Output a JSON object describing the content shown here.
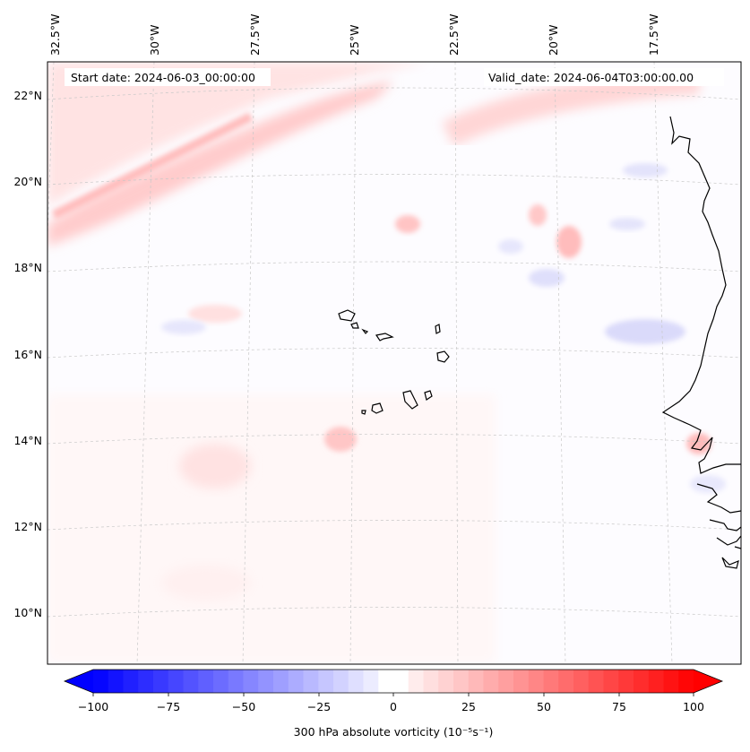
{
  "map": {
    "start_label": "Start date: 2024-06-03_00:00:00",
    "valid_label": "Valid_date: 2024-06-04T03:00:00.00",
    "lon_labels": [
      "32.5°W",
      "30°W",
      "27.5°W",
      "25°W",
      "22.5°W",
      "20°W",
      "17.5°W"
    ],
    "lat_labels": [
      "22°N",
      "20°N",
      "18°N",
      "16°N",
      "14°N",
      "12°N",
      "10°N"
    ],
    "region": "Cape Verde islands and West African coast",
    "gridlines": true
  },
  "colorbar": {
    "label": "300 hPa absolute vorticity (10⁻⁵s⁻¹)",
    "ticks": [
      "−100",
      "−75",
      "−50",
      "−25",
      "0",
      "25",
      "50",
      "75",
      "100"
    ],
    "min": -100,
    "max": 100,
    "negative_color": "#0000ff",
    "zero_color": "#ffffff",
    "positive_color": "#ff0000"
  }
}
